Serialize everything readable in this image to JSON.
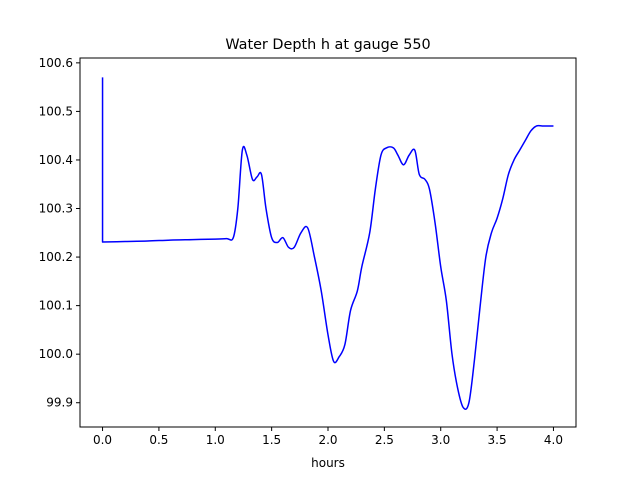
{
  "chart_data": {
    "type": "line",
    "title": "Water Depth h at gauge 550",
    "xlabel": "hours",
    "ylabel": "",
    "xlim": [
      -0.2,
      4.2
    ],
    "ylim": [
      99.85,
      100.61
    ],
    "grid": false,
    "xticks": [
      0.0,
      0.5,
      1.0,
      1.5,
      2.0,
      2.5,
      3.0,
      3.5,
      4.0
    ],
    "xtick_labels": [
      "0.0",
      "0.5",
      "1.0",
      "1.5",
      "2.0",
      "2.5",
      "3.0",
      "3.5",
      "4.0"
    ],
    "yticks": [
      99.9,
      100.0,
      100.1,
      100.2,
      100.3,
      100.4,
      100.5,
      100.6
    ],
    "ytick_labels": [
      "99.9",
      "100.0",
      "100.1",
      "100.2",
      "100.3",
      "100.4",
      "100.5",
      "100.6"
    ],
    "series": [
      {
        "color": "#0000ff",
        "x": [
          0.0,
          0.0,
          0.0,
          0.2,
          0.4,
          0.6,
          0.8,
          1.0,
          1.1,
          1.16,
          1.2,
          1.24,
          1.28,
          1.33,
          1.37,
          1.41,
          1.45,
          1.5,
          1.55,
          1.6,
          1.65,
          1.7,
          1.76,
          1.82,
          1.88,
          1.94,
          2.0,
          2.05,
          2.1,
          2.15,
          2.2,
          2.26,
          2.3,
          2.37,
          2.42,
          2.47,
          2.52,
          2.58,
          2.62,
          2.67,
          2.72,
          2.77,
          2.81,
          2.86,
          2.9,
          2.95,
          3.0,
          3.05,
          3.1,
          3.15,
          3.2,
          3.25,
          3.3,
          3.35,
          3.4,
          3.45,
          3.5,
          3.55,
          3.6,
          3.65,
          3.7,
          3.75,
          3.8,
          3.85,
          3.9,
          3.95,
          4.0
        ],
        "y": [
          100.57,
          100.231,
          100.231,
          100.232,
          100.233,
          100.235,
          100.236,
          100.237,
          100.238,
          100.24,
          100.3,
          100.42,
          100.41,
          100.36,
          100.365,
          100.37,
          100.3,
          100.24,
          100.23,
          100.24,
          100.22,
          100.22,
          100.25,
          100.26,
          100.2,
          100.13,
          100.04,
          99.985,
          99.995,
          100.02,
          100.09,
          100.13,
          100.18,
          100.25,
          100.34,
          100.41,
          100.425,
          100.425,
          100.41,
          100.39,
          100.41,
          100.42,
          100.37,
          100.36,
          100.34,
          100.27,
          100.18,
          100.11,
          100.0,
          99.93,
          99.89,
          99.9,
          99.99,
          100.1,
          100.2,
          100.25,
          100.28,
          100.32,
          100.37,
          100.4,
          100.42,
          100.44,
          100.46,
          100.47,
          100.47,
          100.47,
          100.47
        ]
      }
    ]
  }
}
